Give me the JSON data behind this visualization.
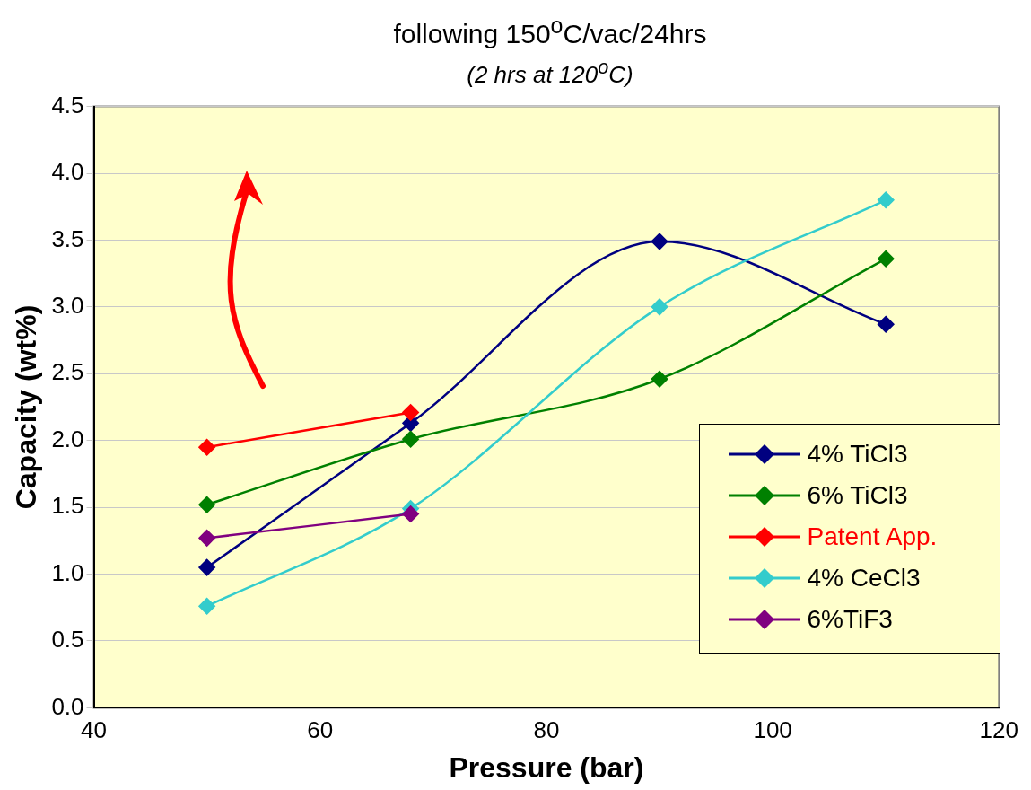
{
  "chart_data": {
    "type": "line",
    "title": "following 150$^{o}$C/vac/24hrs",
    "subtitle": "(2 hrs at 120$^{o}$C)",
    "xlabel": "Pressure (bar)",
    "ylabel": "Capacity (wt%)",
    "x": [
      50,
      68,
      90,
      110
    ],
    "series": [
      {
        "name": "4% TiCl3",
        "color": "#000080",
        "values": [
          1.05,
          2.13,
          3.49,
          2.87
        ]
      },
      {
        "name": "6% TiCl3",
        "color": "#008000",
        "values": [
          1.52,
          2.01,
          2.46,
          3.36
        ]
      },
      {
        "name": "Patent App.",
        "color": "#ff0000",
        "values": [
          1.95,
          2.21,
          null,
          null
        ]
      },
      {
        "name": "4% CeCl3",
        "color": "#33cccc",
        "values": [
          0.76,
          1.49,
          3.0,
          3.8
        ]
      },
      {
        "name": "6%TiF3",
        "color": "#800080",
        "values": [
          1.27,
          1.45,
          null,
          null
        ]
      }
    ],
    "xlim": [
      40,
      120
    ],
    "xticks": [
      40,
      60,
      80,
      100,
      120
    ],
    "ylim": [
      0,
      4.5
    ],
    "yticks": [
      {
        "value": 0,
        "label": "0.0"
      },
      {
        "value": 0.5,
        "label": "0.5"
      },
      {
        "value": 1,
        "label": "1.0"
      },
      {
        "value": 1.5,
        "label": "1.5"
      },
      {
        "value": 2,
        "label": "2.0"
      },
      {
        "value": 2.5,
        "label": "2.5"
      },
      {
        "value": 3,
        "label": "3.0"
      },
      {
        "value": 3.5,
        "label": "3.5"
      },
      {
        "value": 4,
        "label": "4.0"
      },
      {
        "value": 4.5,
        "label": "4.5"
      }
    ],
    "grid": "y",
    "legend": "bottom right",
    "marker": "diamond",
    "line_style": "solid"
  }
}
